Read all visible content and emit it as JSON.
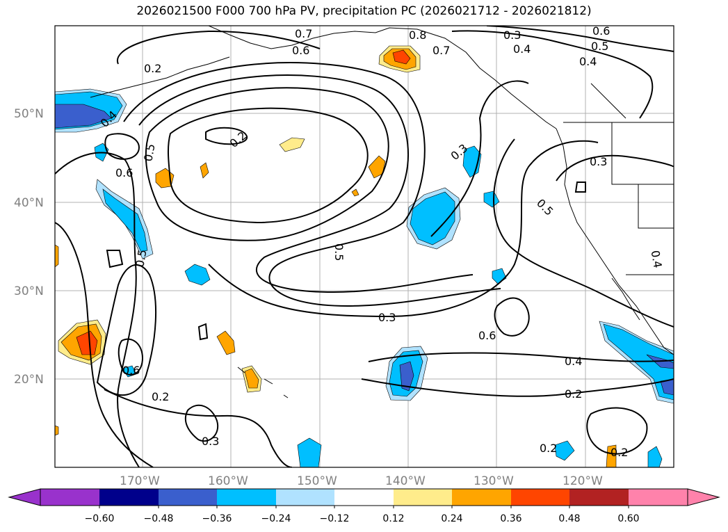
{
  "title": "2026021500 F000 700 hPa PV, precipitation PC (2026021712 - 2026021812)",
  "lat_labels": [
    {
      "id": "50",
      "text": "50°N"
    },
    {
      "id": "40",
      "text": "40°N"
    },
    {
      "id": "30",
      "text": "30°N"
    },
    {
      "id": "20",
      "text": "20°N"
    }
  ],
  "lon_labels": [
    {
      "id": "170w",
      "text": "170°W"
    },
    {
      "id": "160w",
      "text": "160°W"
    },
    {
      "id": "150w",
      "text": "150°W"
    },
    {
      "id": "140w",
      "text": "140°W"
    },
    {
      "id": "130w",
      "text": "130°W"
    },
    {
      "id": "120w",
      "text": "120°W"
    }
  ],
  "contour_labels": [
    "0.2",
    "0.3",
    "0.4",
    "0.5",
    "0.6",
    "0.7",
    "0.8"
  ],
  "colorbar": {
    "ticks": [
      "−0.60",
      "−0.48",
      "−0.36",
      "−0.24",
      "−0.12",
      "0.12",
      "0.24",
      "0.36",
      "0.48",
      "0.60"
    ],
    "colors": [
      "#9932cc",
      "#00008b",
      "#3a5fcd",
      "#00bfff",
      "#b0e2ff",
      "#ffffff",
      "#ffec8b",
      "#ffa500",
      "#ff4500",
      "#b22222",
      "#ff82ab"
    ]
  },
  "shading_colors": {
    "neg_light": "#b0e2ff",
    "neg_mid": "#00bfff",
    "neg_strong": "#3a5fcd",
    "pos_light": "#ffec8b",
    "pos_mid": "#ffa500",
    "pos_strong": "#ff4500"
  }
}
